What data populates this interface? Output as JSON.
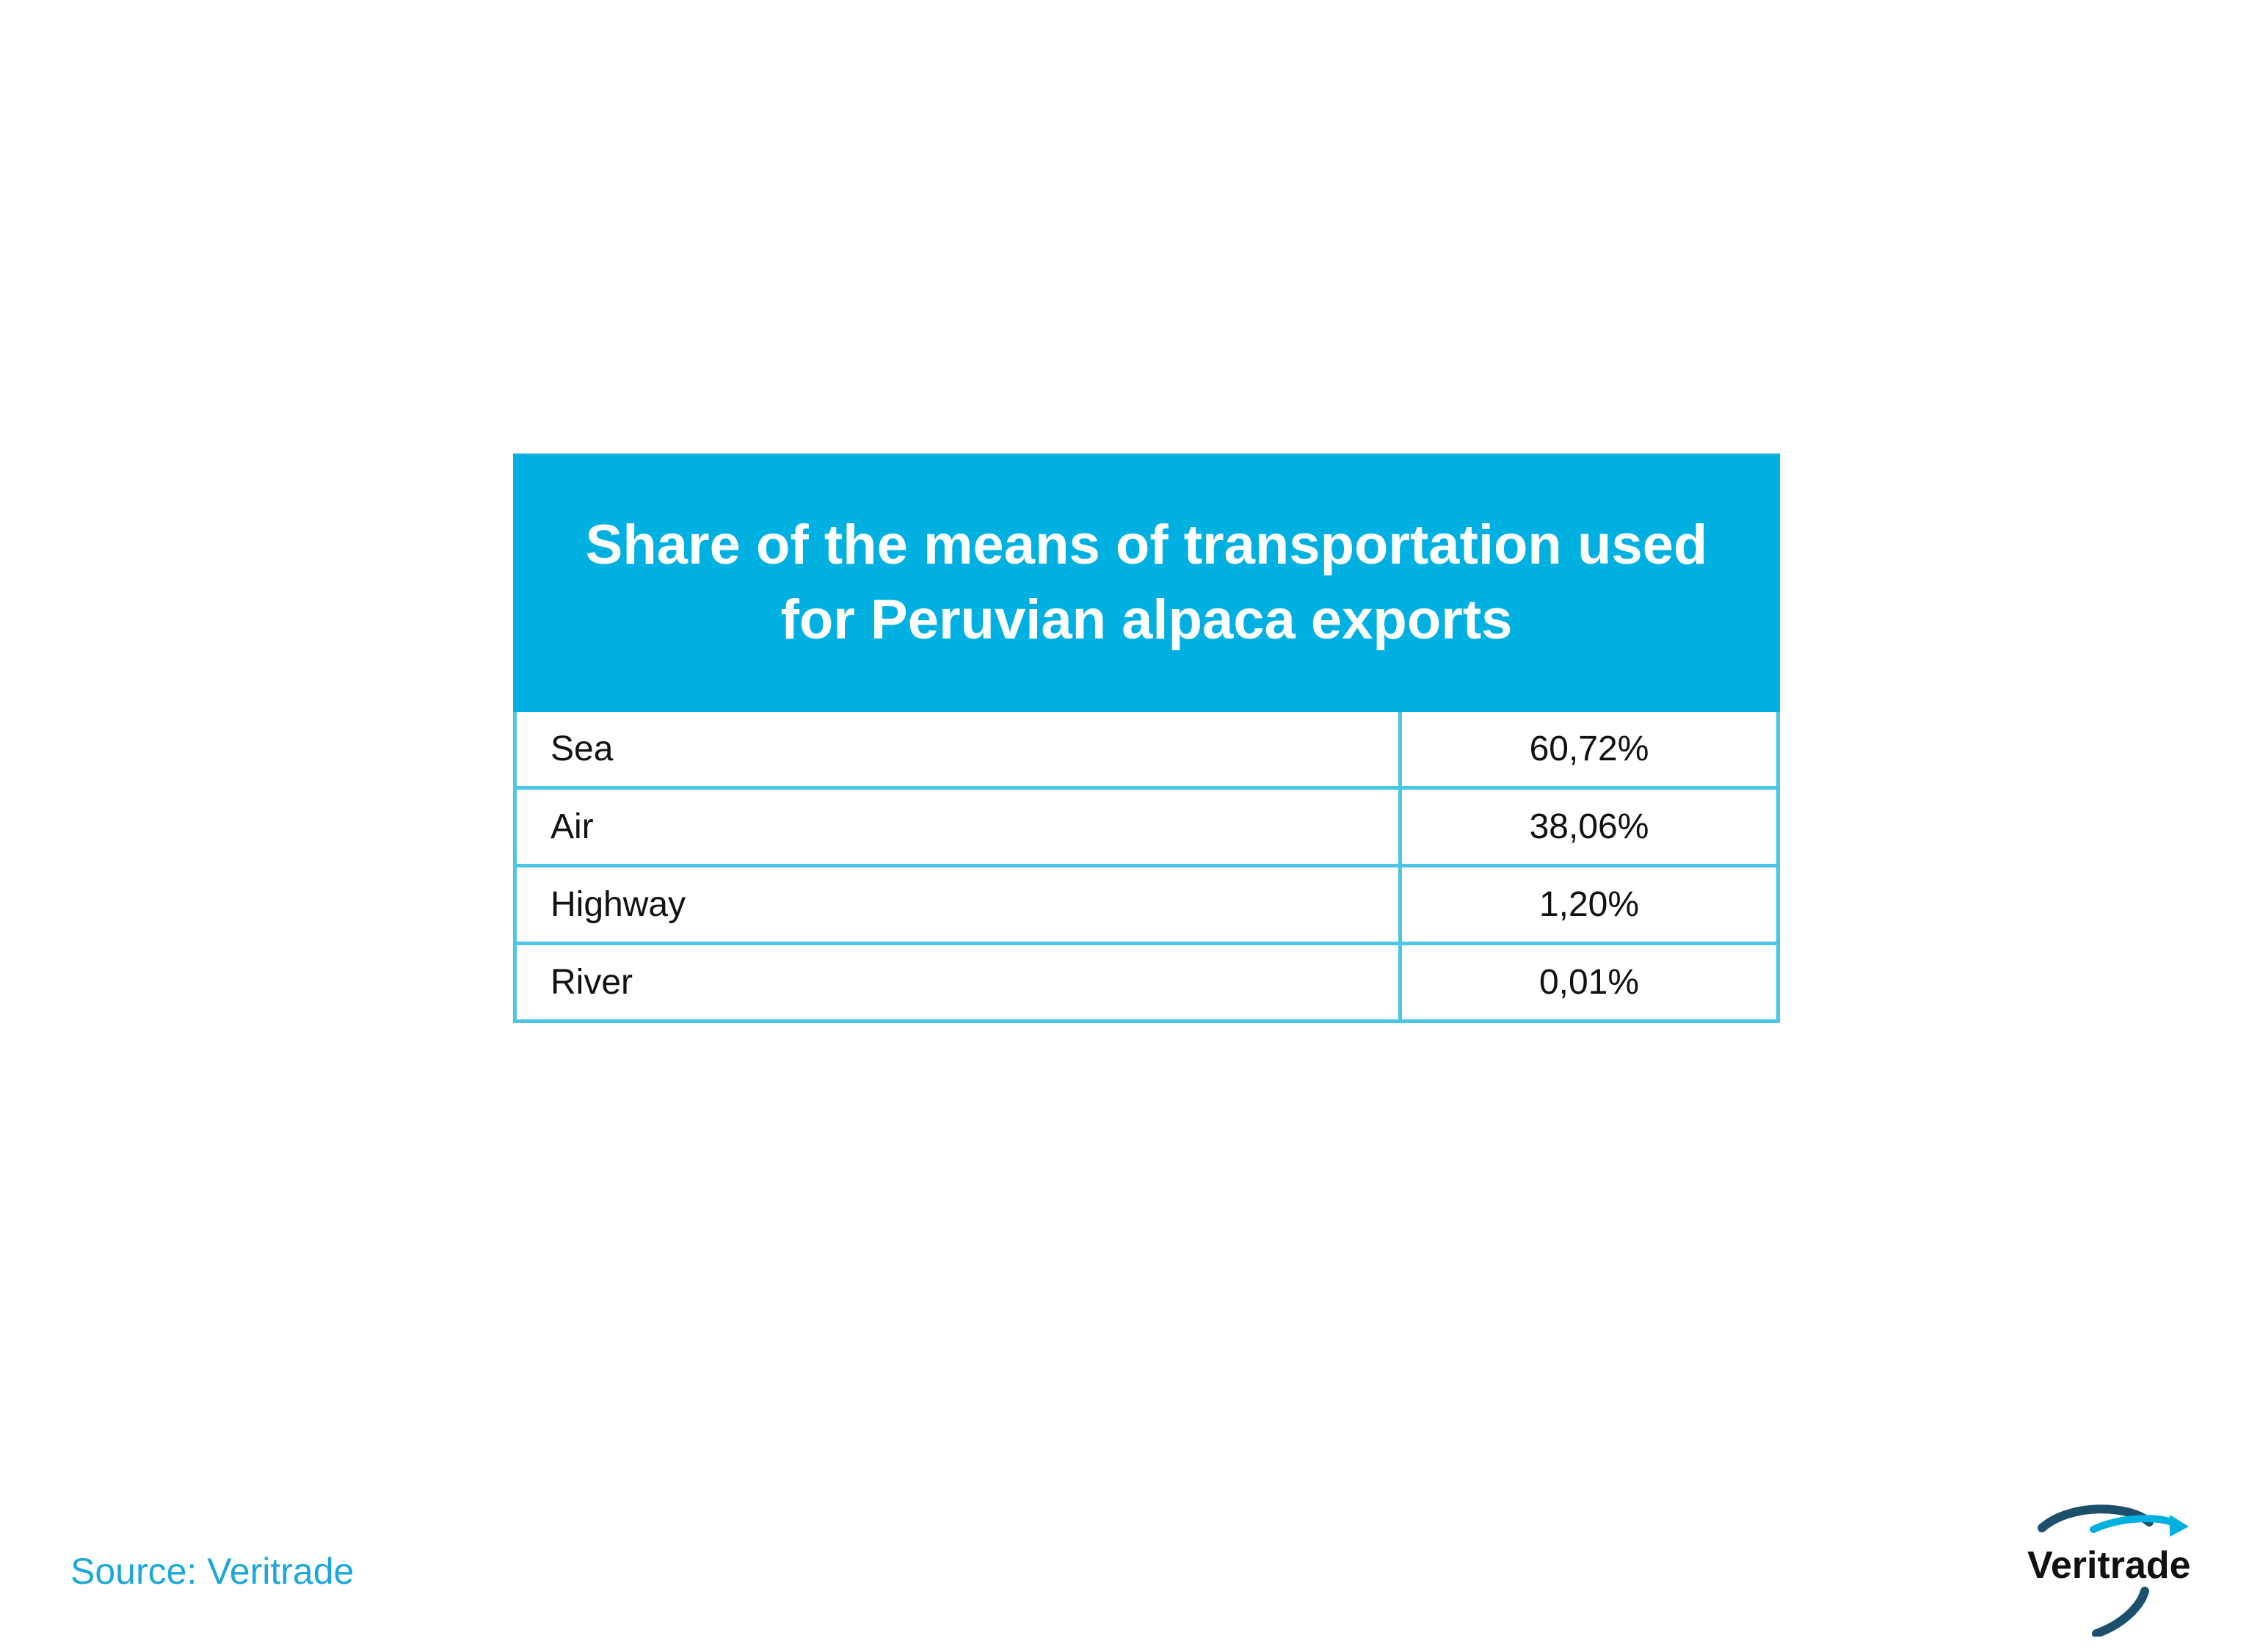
{
  "chart_data": {
    "type": "table",
    "title": "Share of the means of transportation used for Peruvian alpaca exports",
    "title_lines": [
      "Share of the means of transportation used",
      "for Peruvian alpaca exports"
    ],
    "rows": [
      {
        "label": "Sea",
        "value": "60,72%"
      },
      {
        "label": "Air",
        "value": "38,06%"
      },
      {
        "label": "Highway",
        "value": "1,20%"
      },
      {
        "label": "River",
        "value": "0,01%"
      }
    ]
  },
  "footer": {
    "source": "Source: Veritrade"
  },
  "logo": {
    "text": "Veritrade",
    "icon": "veritrade-swoosh-logo"
  },
  "colors": {
    "header_bg": "#00B0E0",
    "grid_line": "#4CC6E6",
    "source_text": "#1CA8D8",
    "logo_dark": "#1B4F6B",
    "logo_light": "#00B0E0"
  }
}
